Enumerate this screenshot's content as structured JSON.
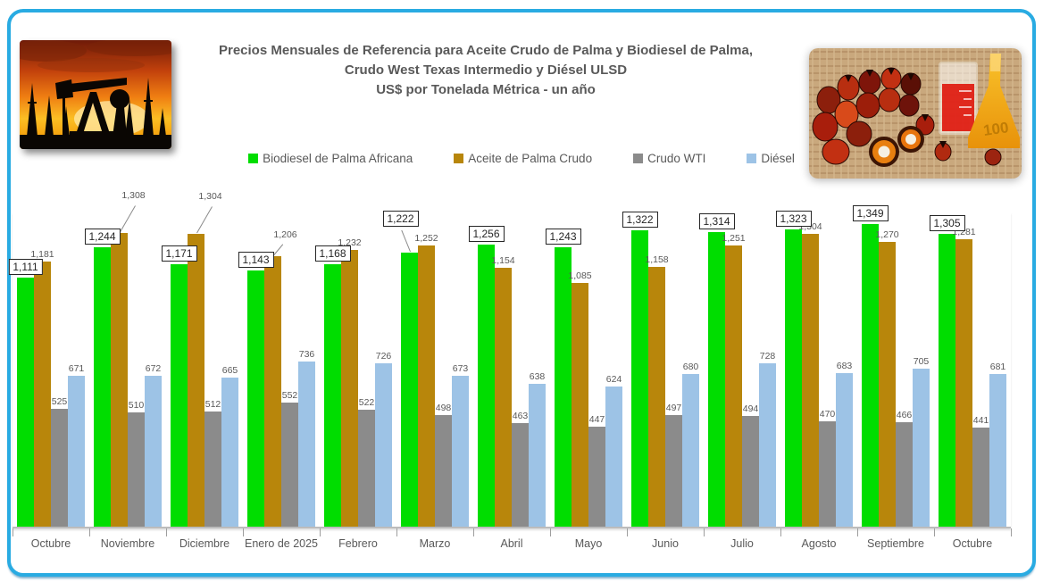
{
  "frame": {
    "border_color": "#29ABE2",
    "background": "#FFFFFF"
  },
  "header": {
    "title_line1": "Precios Mensuales de Referencia para Aceite Crudo de Palma y Biodiesel de Palma,",
    "title_line2": "Crudo West Texas Intermedio y Diésel ULSD",
    "title_line3": "US$ por Tonelada Métrica - un año",
    "left_image": "oil-pumpjack-sunset-photo",
    "right_image": "palm-fruits-and-oil-flask-photo",
    "right_image_label": "100"
  },
  "chart_data": {
    "type": "bar",
    "title": "Precios Mensuales de Referencia para Aceite Crudo de Palma y Biodiesel de Palma, Crudo West Texas Intermedio y Diésel ULSD — US$ por Tonelada Métrica - un año",
    "categories": [
      "Octubre",
      "Noviembre",
      "Diciembre",
      "Enero de 2025",
      "Febrero",
      "Marzo",
      "Abril",
      "Mayo",
      "Junio",
      "Julio",
      "Agosto",
      "Septiembre",
      "Octubre"
    ],
    "series": [
      {
        "name": "Biodiesel de Palma Africana",
        "color": "#00DD00",
        "values": [
          1111,
          1244,
          1171,
          1143,
          1168,
          1222,
          1256,
          1243,
          1322,
          1314,
          1323,
          1349,
          1305
        ],
        "label_boxed": true
      },
      {
        "name": "Aceite de Palma Crudo",
        "color": "#B8860B",
        "values": [
          1181,
          1308,
          1304,
          1206,
          1232,
          1252,
          1154,
          1085,
          1158,
          1251,
          1304,
          1270,
          1281
        ],
        "label_boxed": false
      },
      {
        "name": "Crudo WTI",
        "color": "#8B8B8B",
        "values": [
          525,
          510,
          512,
          552,
          522,
          498,
          463,
          447,
          497,
          494,
          470,
          466,
          441
        ],
        "label_boxed": false
      },
      {
        "name": "Diésel",
        "color": "#9DC3E6",
        "values": [
          671,
          672,
          665,
          736,
          726,
          673,
          638,
          624,
          680,
          728,
          683,
          705,
          681
        ],
        "label_boxed": false
      }
    ],
    "ylim": [
      0,
      1400
    ],
    "grid": false,
    "legend_position": "top",
    "value_labels": "all",
    "number_format": "thousands-comma",
    "callouts": [
      {
        "series": 0,
        "index": 5,
        "raise": 26,
        "dx": -10,
        "lean": -22
      },
      {
        "series": 1,
        "index": 1,
        "raise": 34,
        "dx": 16,
        "lean": 30
      },
      {
        "series": 1,
        "index": 2,
        "raise": 34,
        "dx": 16,
        "lean": 30
      },
      {
        "series": 1,
        "index": 3,
        "raise": 16,
        "dx": 14,
        "lean": 40
      }
    ]
  }
}
